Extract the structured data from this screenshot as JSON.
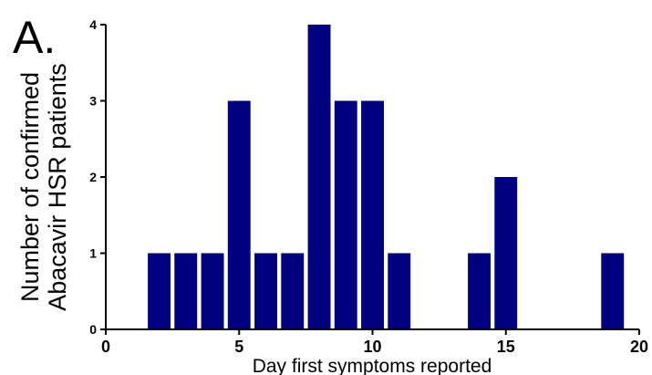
{
  "panel_label": "A.",
  "chart_data": {
    "type": "bar",
    "xlabel": "Day first symptoms reported",
    "ylabel_lines": [
      "Number of confirmed",
      "Abacavir HSR patients"
    ],
    "x": [
      2,
      3,
      4,
      5,
      6,
      7,
      8,
      9,
      10,
      11,
      14,
      15,
      19
    ],
    "values": [
      1,
      1,
      1,
      3,
      1,
      1,
      4,
      3,
      3,
      1,
      1,
      2,
      1
    ],
    "xlim": [
      0,
      20
    ],
    "ylim": [
      0,
      4
    ],
    "xticks": [
      0,
      5,
      10,
      15,
      20
    ],
    "yticks": [
      0,
      1,
      2,
      3,
      4
    ],
    "bar_color": "#000080",
    "grid": false
  }
}
